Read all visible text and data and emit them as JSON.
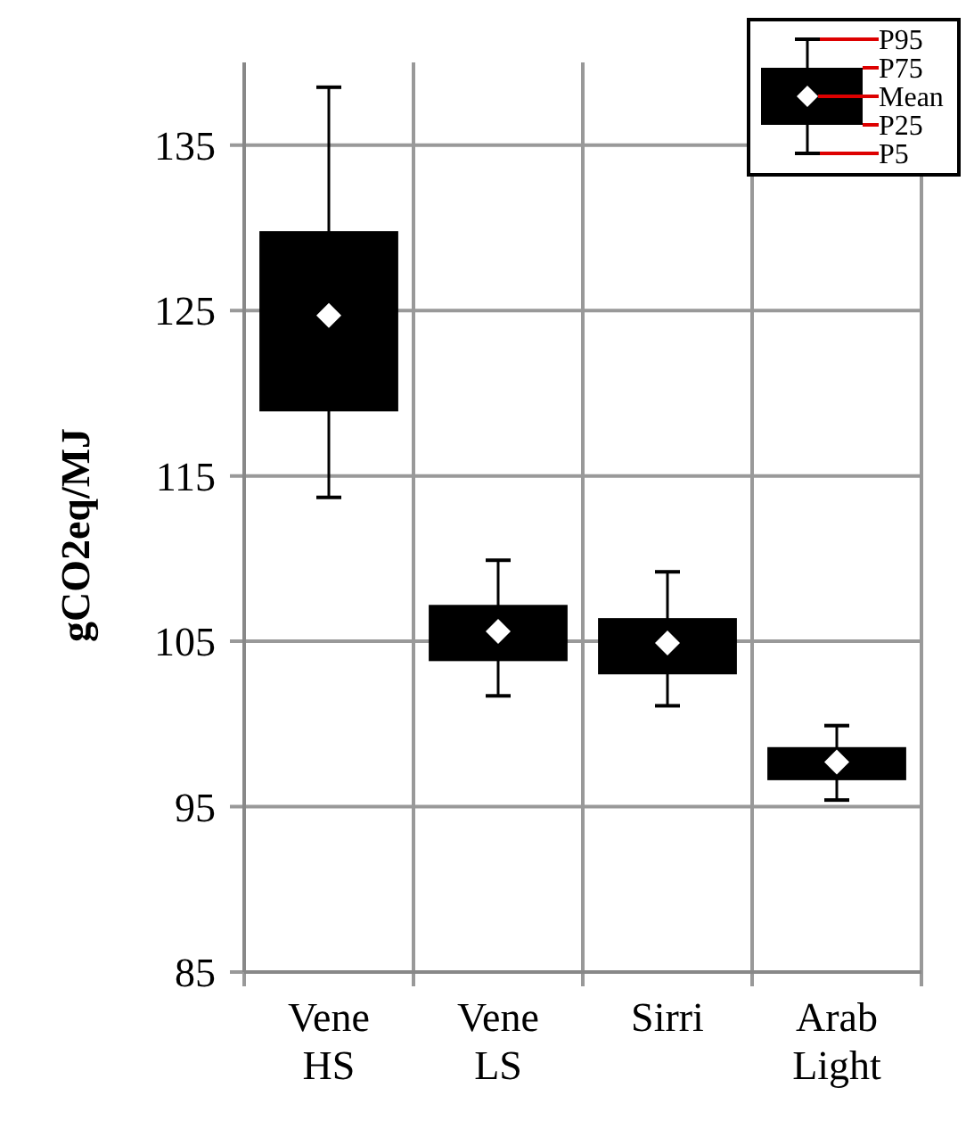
{
  "chart_data": {
    "type": "box",
    "ylabel": "gCO2eq/MJ",
    "categories": [
      "Vene HS",
      "Vene LS",
      "Sirri",
      "Arab Light"
    ],
    "color": "#000000",
    "boxes": [
      {
        "low": 113.7,
        "q1": 118.9,
        "q3": 129.8,
        "high": 138.5,
        "mean": 124.7
      },
      {
        "low": 101.7,
        "q1": 103.8,
        "q3": 107.2,
        "high": 109.9,
        "mean": 105.6
      },
      {
        "low": 101.1,
        "q1": 103.0,
        "q3": 106.4,
        "high": 109.2,
        "mean": 104.9
      },
      {
        "low": 95.4,
        "q1": 96.6,
        "q3": 98.6,
        "high": 99.9,
        "mean": 97.7
      }
    ],
    "ylim": [
      85,
      140
    ],
    "yticks": [
      85,
      95,
      105,
      115,
      125,
      135
    ],
    "grid": true,
    "annotations": [
      "P95",
      "P75",
      "Mean",
      "P25",
      "P5"
    ]
  }
}
